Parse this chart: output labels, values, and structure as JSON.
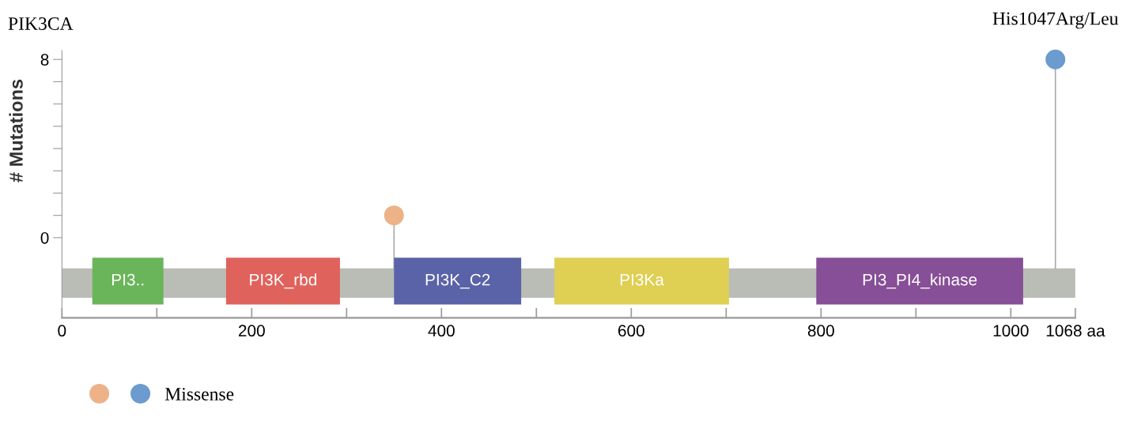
{
  "chart_data": {
    "type": "lollipop",
    "title": "PIK3CA",
    "ylabel": "# Mutations",
    "x": [
      350,
      1047
    ],
    "series": [
      {
        "name": "Missense",
        "colors": [
          "#edb287",
          "#6b9bcf"
        ],
        "values": [
          1,
          8
        ],
        "marker": "circle"
      }
    ],
    "annotations": [
      {
        "text": "His1047Arg/Leu",
        "x": 1047,
        "y": 8
      }
    ],
    "bands": [
      {
        "axis": "x",
        "from": 0,
        "to": 1068,
        "color": "#babdb6"
      },
      {
        "axis": "x",
        "from": 32,
        "to": 107,
        "label": "PI3..",
        "color": "#6ab55a"
      },
      {
        "axis": "x",
        "from": 173,
        "to": 293,
        "label": "PI3K_rbd",
        "color": "#e0625c"
      },
      {
        "axis": "x",
        "from": 350,
        "to": 484,
        "label": "PI3K_C2",
        "color": "#5a63a8"
      },
      {
        "axis": "x",
        "from": 519,
        "to": 703,
        "label": "PI3Ka",
        "color": "#dfcf52"
      },
      {
        "axis": "x",
        "from": 795,
        "to": 1013,
        "label": "PI3_PI4_kinase",
        "color": "#874f97"
      }
    ],
    "xlim": [
      0,
      1068
    ],
    "xticks": [
      0,
      {
        "value": 100,
        "label": null
      },
      200,
      {
        "value": 300,
        "label": null
      },
      400,
      {
        "value": 500,
        "label": null
      },
      600,
      {
        "value": 700,
        "label": null
      },
      800,
      {
        "value": 900,
        "label": null
      },
      1000,
      {
        "value": 1068,
        "label": "1068 aa"
      }
    ],
    "ylim": [
      -3.6,
      8.4
    ],
    "yticks": [
      0,
      {
        "value": 1,
        "label": null
      },
      {
        "value": 2,
        "label": null
      },
      {
        "value": 3,
        "label": null
      },
      {
        "value": 4,
        "label": null
      },
      {
        "value": 5,
        "label": null
      },
      {
        "value": 6,
        "label": null
      },
      {
        "value": 7,
        "label": null
      },
      8
    ],
    "grid": false,
    "legend": "bottom left"
  }
}
